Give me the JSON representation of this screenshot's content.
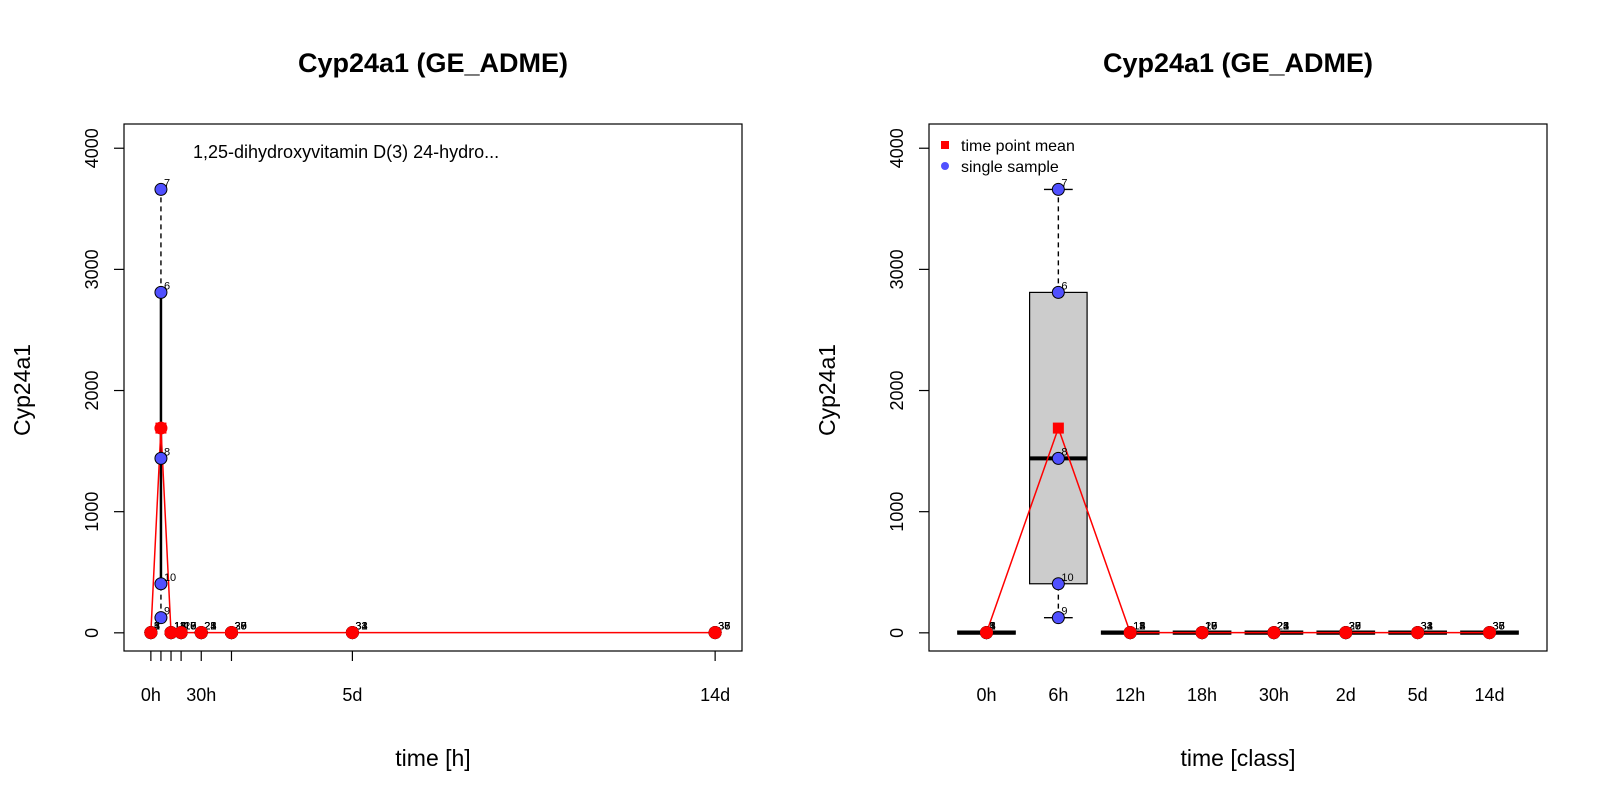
{
  "chart_data": [
    {
      "type": "scatter",
      "title": "Cyp24a1 (GE_ADME)",
      "xlabel": "time [h]",
      "ylabel": "Cyp24a1",
      "annotation": "1,25-dihydroxyvitamin D(3) 24-hydro...",
      "ylim": [
        -150,
        4200
      ],
      "xlim": [
        -16,
        352
      ],
      "y_ticks": [
        0,
        1000,
        2000,
        3000,
        4000
      ],
      "x_ticks": [
        0,
        6,
        12,
        18,
        30,
        48,
        120,
        336
      ],
      "x_tick_labels": [
        {
          "x": 0,
          "label": "0h"
        },
        {
          "x": 30,
          "label": "30h"
        },
        {
          "x": 120,
          "label": "5d"
        },
        {
          "x": 336,
          "label": "14d"
        }
      ],
      "samples": [
        {
          "x": 0,
          "y": 2,
          "label": "1"
        },
        {
          "x": 0,
          "y": 3,
          "label": "2"
        },
        {
          "x": 0,
          "y": 1,
          "label": "3"
        },
        {
          "x": 0,
          "y": 2,
          "label": "4"
        },
        {
          "x": 0,
          "y": 1,
          "label": "5"
        },
        {
          "x": 6,
          "y": 2810,
          "label": "6"
        },
        {
          "x": 6,
          "y": 3660,
          "label": "7"
        },
        {
          "x": 6,
          "y": 1440,
          "label": "8"
        },
        {
          "x": 6,
          "y": 125,
          "label": "9"
        },
        {
          "x": 6,
          "y": 405,
          "label": "10"
        },
        {
          "x": 12,
          "y": 2,
          "label": "11"
        },
        {
          "x": 12,
          "y": 3,
          "label": "12"
        },
        {
          "x": 12,
          "y": 1,
          "label": "13"
        },
        {
          "x": 12,
          "y": 2,
          "label": "14"
        },
        {
          "x": 12,
          "y": 1,
          "label": "15"
        },
        {
          "x": 18,
          "y": 2,
          "label": "16"
        },
        {
          "x": 18,
          "y": 3,
          "label": "17"
        },
        {
          "x": 18,
          "y": 1,
          "label": "18"
        },
        {
          "x": 18,
          "y": 2,
          "label": "19"
        },
        {
          "x": 18,
          "y": 1,
          "label": "20"
        },
        {
          "x": 30,
          "y": 2,
          "label": "21"
        },
        {
          "x": 30,
          "y": 3,
          "label": "22"
        },
        {
          "x": 30,
          "y": 1,
          "label": "23"
        },
        {
          "x": 30,
          "y": 2,
          "label": "24"
        },
        {
          "x": 30,
          "y": 1,
          "label": "25"
        },
        {
          "x": 48,
          "y": 2,
          "label": "26"
        },
        {
          "x": 48,
          "y": 3,
          "label": "27"
        },
        {
          "x": 48,
          "y": 1,
          "label": "28"
        },
        {
          "x": 48,
          "y": 2,
          "label": "29"
        },
        {
          "x": 48,
          "y": 1,
          "label": "30"
        },
        {
          "x": 120,
          "y": 2,
          "label": "31"
        },
        {
          "x": 120,
          "y": 3,
          "label": "32"
        },
        {
          "x": 120,
          "y": 1,
          "label": "33"
        },
        {
          "x": 120,
          "y": 2,
          "label": "34"
        },
        {
          "x": 336,
          "y": 2,
          "label": "35"
        },
        {
          "x": 336,
          "y": 3,
          "label": "36"
        },
        {
          "x": 336,
          "y": 1,
          "label": "37"
        },
        {
          "x": 336,
          "y": 2,
          "label": "38"
        }
      ],
      "means": [
        {
          "x": 0,
          "y": 2
        },
        {
          "x": 6,
          "y": 1690
        },
        {
          "x": 12,
          "y": 2
        },
        {
          "x": 18,
          "y": 2
        },
        {
          "x": 30,
          "y": 2
        },
        {
          "x": 48,
          "y": 2
        },
        {
          "x": 120,
          "y": 2
        },
        {
          "x": 336,
          "y": 2
        }
      ],
      "colors": {
        "mean": "#ff0000",
        "sample": "#5050ff",
        "line": "#ff0000"
      }
    },
    {
      "type": "box",
      "title": "Cyp24a1 (GE_ADME)",
      "xlabel": "time [class]",
      "ylabel": "Cyp24a1",
      "ylim": [
        -150,
        4200
      ],
      "y_ticks": [
        0,
        1000,
        2000,
        3000,
        4000
      ],
      "categories": [
        "0h",
        "6h",
        "12h",
        "18h",
        "30h",
        "2d",
        "5d",
        "14d"
      ],
      "legend": {
        "position": "top-left",
        "items": [
          {
            "label": "time point mean",
            "symbol": "square",
            "color": "#ff0000"
          },
          {
            "label": "single sample",
            "symbol": "circle",
            "color": "#5050ff"
          }
        ]
      },
      "boxes": [
        {
          "category": "0h",
          "min": 1,
          "q1": 1,
          "median": 2,
          "q3": 2,
          "max": 3
        },
        {
          "category": "6h",
          "min": 125,
          "q1": 405,
          "median": 1440,
          "q3": 2810,
          "max": 3660
        },
        {
          "category": "12h",
          "min": 1,
          "q1": 1,
          "median": 2,
          "q3": 2,
          "max": 3
        },
        {
          "category": "18h",
          "min": 1,
          "q1": 1,
          "median": 2,
          "q3": 2,
          "max": 3
        },
        {
          "category": "30h",
          "min": 1,
          "q1": 1,
          "median": 2,
          "q3": 2,
          "max": 3
        },
        {
          "category": "2d",
          "min": 1,
          "q1": 1,
          "median": 2,
          "q3": 2,
          "max": 3
        },
        {
          "category": "5d",
          "min": 1,
          "q1": 1,
          "median": 2,
          "q3": 2,
          "max": 3
        },
        {
          "category": "14d",
          "min": 1,
          "q1": 1,
          "median": 2,
          "q3": 2,
          "max": 3
        }
      ],
      "samples": [
        {
          "category": "0h",
          "y": 2,
          "label": "1"
        },
        {
          "category": "0h",
          "y": 3,
          "label": "2"
        },
        {
          "category": "0h",
          "y": 1,
          "label": "3"
        },
        {
          "category": "0h",
          "y": 2,
          "label": "4"
        },
        {
          "category": "0h",
          "y": 1,
          "label": "5"
        },
        {
          "category": "6h",
          "y": 2810,
          "label": "6"
        },
        {
          "category": "6h",
          "y": 3660,
          "label": "7"
        },
        {
          "category": "6h",
          "y": 1440,
          "label": "8"
        },
        {
          "category": "6h",
          "y": 125,
          "label": "9"
        },
        {
          "category": "6h",
          "y": 405,
          "label": "10"
        },
        {
          "category": "12h",
          "y": 2,
          "label": "11"
        },
        {
          "category": "12h",
          "y": 3,
          "label": "12"
        },
        {
          "category": "12h",
          "y": 1,
          "label": "13"
        },
        {
          "category": "12h",
          "y": 2,
          "label": "14"
        },
        {
          "category": "12h",
          "y": 1,
          "label": "15"
        },
        {
          "category": "18h",
          "y": 2,
          "label": "16"
        },
        {
          "category": "18h",
          "y": 3,
          "label": "17"
        },
        {
          "category": "18h",
          "y": 1,
          "label": "18"
        },
        {
          "category": "18h",
          "y": 2,
          "label": "19"
        },
        {
          "category": "18h",
          "y": 1,
          "label": "20"
        },
        {
          "category": "30h",
          "y": 2,
          "label": "21"
        },
        {
          "category": "30h",
          "y": 3,
          "label": "22"
        },
        {
          "category": "30h",
          "y": 1,
          "label": "23"
        },
        {
          "category": "30h",
          "y": 2,
          "label": "24"
        },
        {
          "category": "30h",
          "y": 1,
          "label": "25"
        },
        {
          "category": "2d",
          "y": 2,
          "label": "26"
        },
        {
          "category": "2d",
          "y": 3,
          "label": "27"
        },
        {
          "category": "2d",
          "y": 1,
          "label": "28"
        },
        {
          "category": "2d",
          "y": 2,
          "label": "29"
        },
        {
          "category": "2d",
          "y": 1,
          "label": "30"
        },
        {
          "category": "5d",
          "y": 2,
          "label": "31"
        },
        {
          "category": "5d",
          "y": 3,
          "label": "32"
        },
        {
          "category": "5d",
          "y": 1,
          "label": "33"
        },
        {
          "category": "5d",
          "y": 2,
          "label": "34"
        },
        {
          "category": "14d",
          "y": 2,
          "label": "35"
        },
        {
          "category": "14d",
          "y": 3,
          "label": "36"
        },
        {
          "category": "14d",
          "y": 1,
          "label": "37"
        },
        {
          "category": "14d",
          "y": 2,
          "label": "38"
        }
      ],
      "means": [
        2,
        1690,
        2,
        2,
        2,
        2,
        2,
        2
      ],
      "colors": {
        "mean": "#ff0000",
        "sample": "#5050ff",
        "box_fill": "#cccccc",
        "line": "#ff0000"
      }
    }
  ]
}
